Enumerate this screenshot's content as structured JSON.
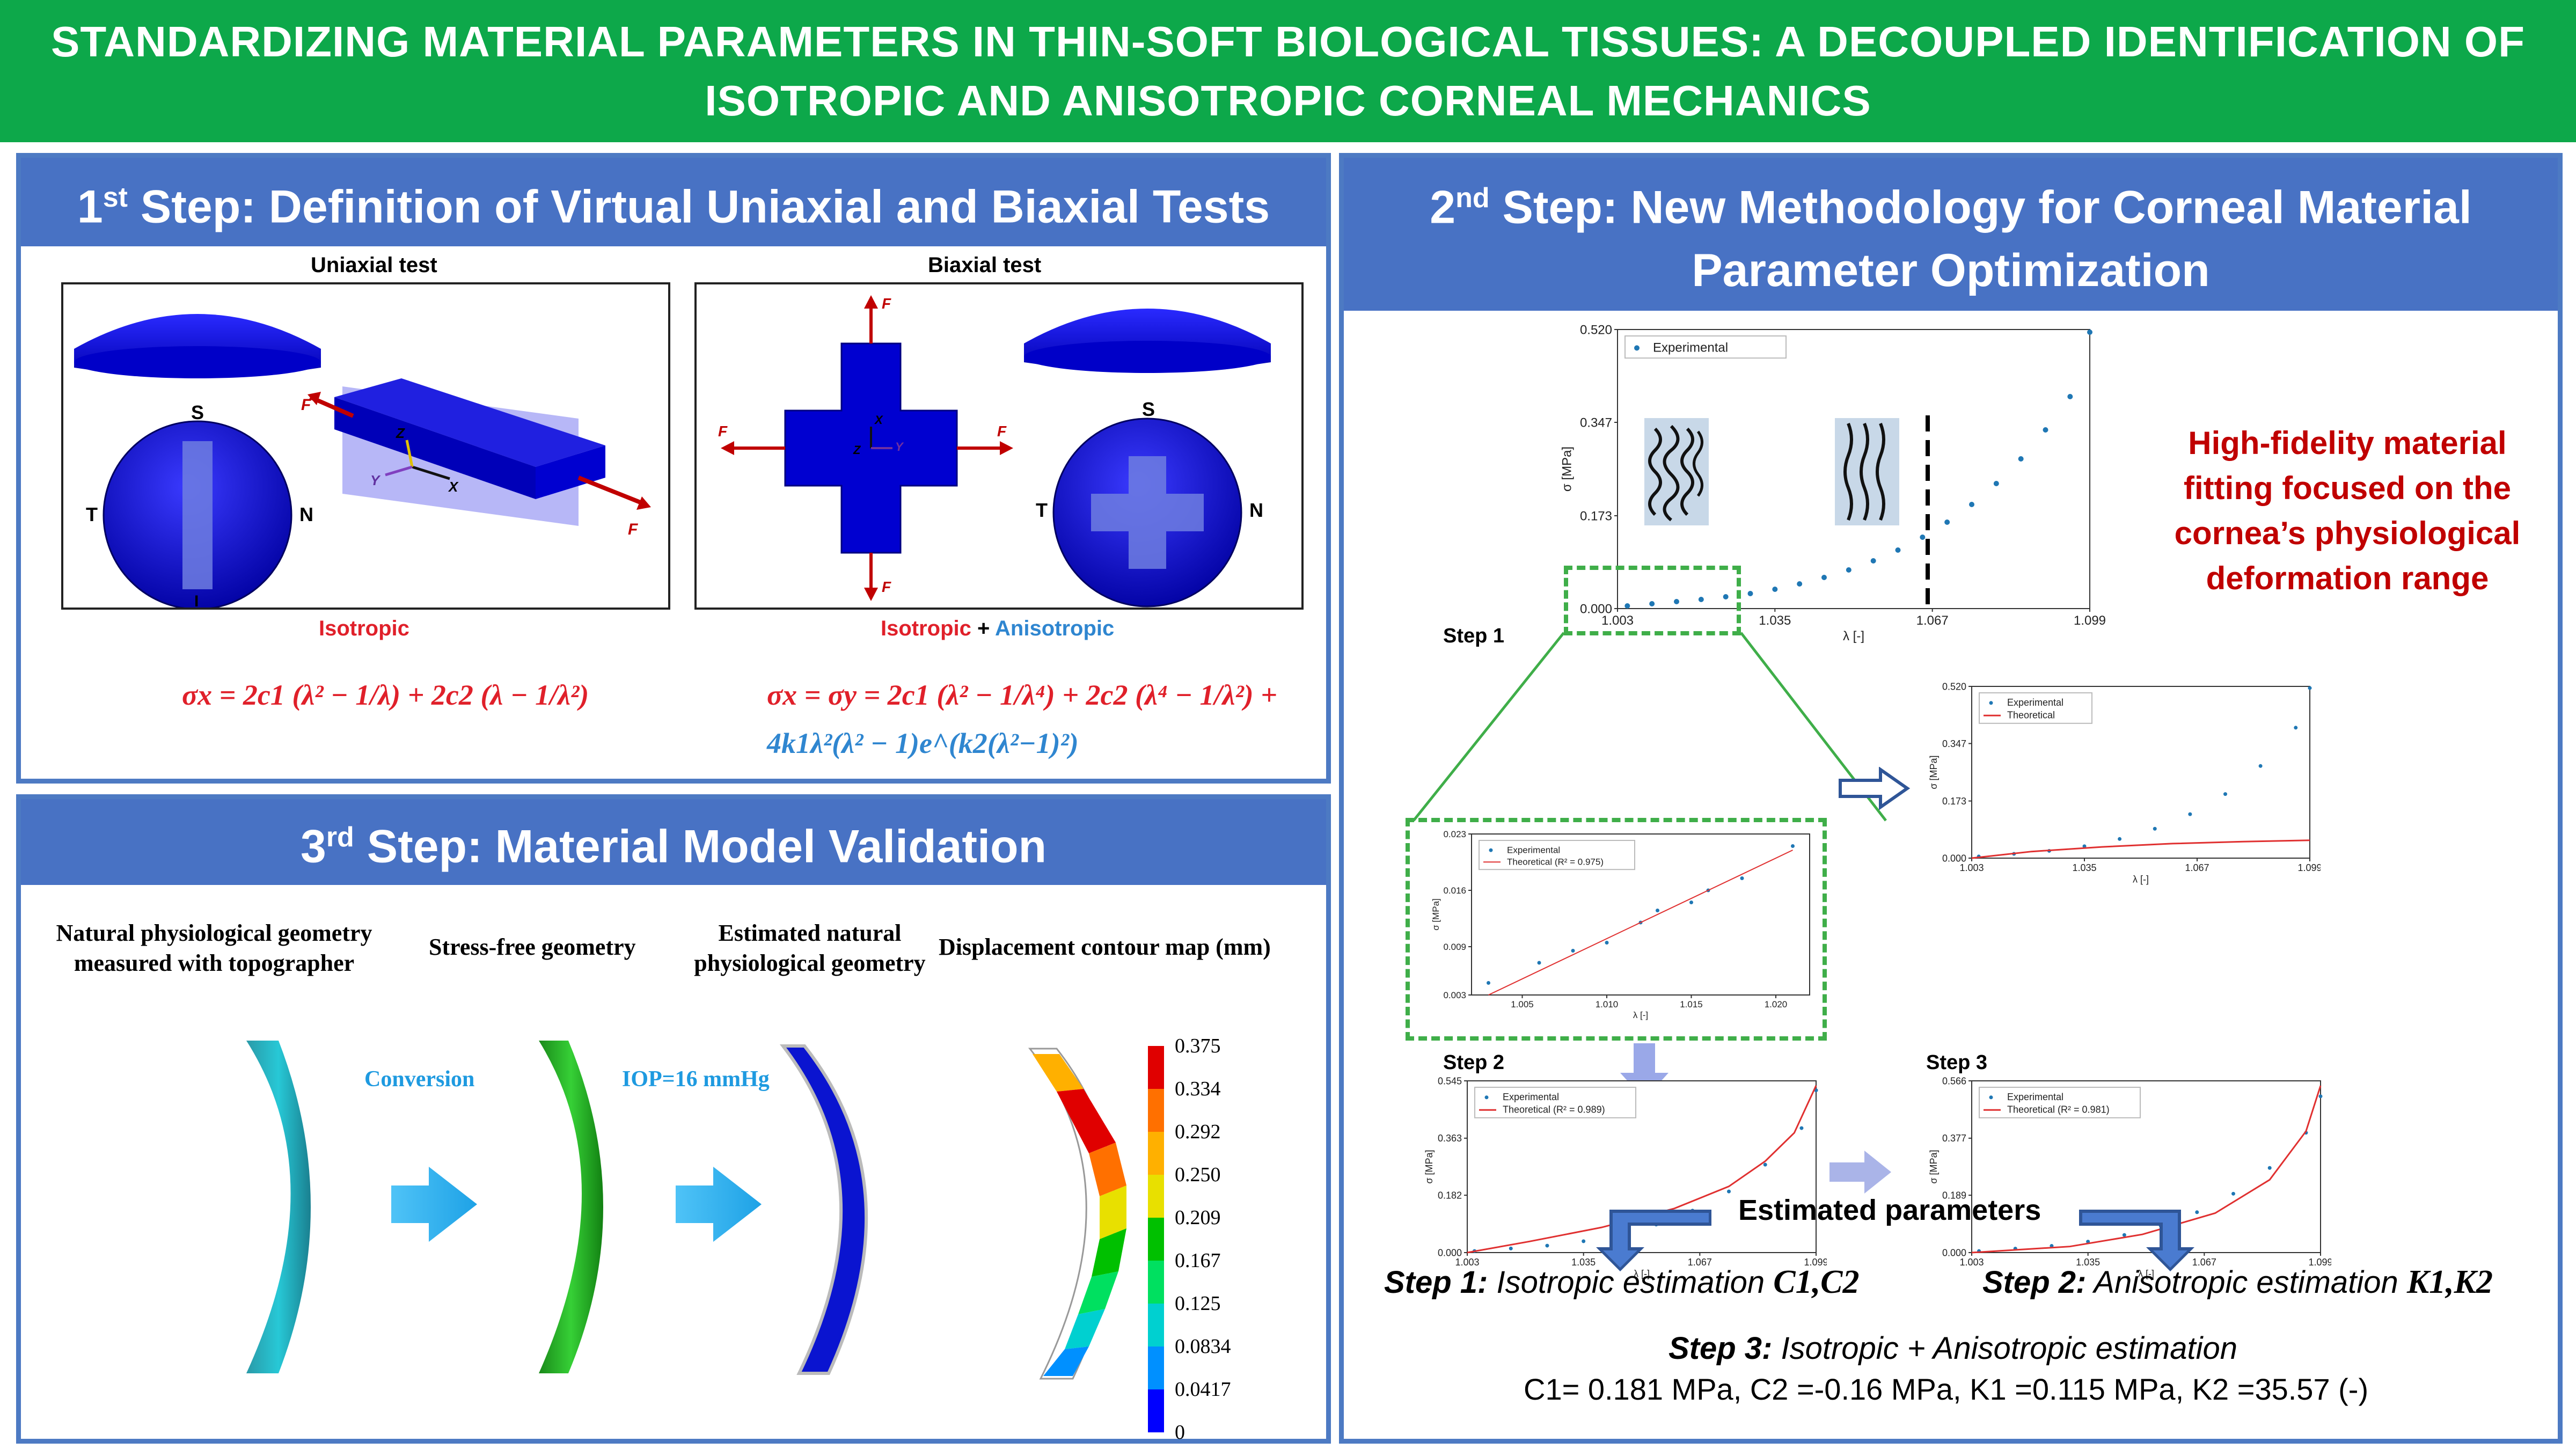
{
  "title": {
    "line1": "STANDARDIZING MATERIAL PARAMETERS IN THIN-SOFT BIOLOGICAL TISSUES: A DECOUPLED IDENTIFICATION OF",
    "line2": "ISOTROPIC AND ANISOTROPIC CORNEAL MECHANICS"
  },
  "step1": {
    "ordinal": "1",
    "ordinal_suffix": "st",
    "heading": " Step: Definition of Virtual Uniaxial and Biaxial Tests",
    "uniaxial_label": "Uniaxial test",
    "biaxial_label": "Biaxial test",
    "orient": {
      "s": "S",
      "t": "T",
      "n": "N",
      "i": "I"
    },
    "force_label": "F",
    "axes": {
      "x": "X",
      "y": "Y",
      "z": "Z"
    },
    "isotropic_label": "Isotropic",
    "plus": " + ",
    "anisotropic_label": "Anisotropic",
    "eq_uniaxial": "σx = 2c1 (λ² − 1/λ) + 2c2 (λ − 1/λ²)",
    "eq_biaxial_a": "σx = σy = 2c1 (λ² − 1/λ⁴) + 2c2 (λ⁴ − 1/λ²) +",
    "eq_biaxial_b": "4k1λ²(λ² − 1)e^(k2(λ²−1)²)"
  },
  "step2": {
    "ordinal": "2",
    "ordinal_suffix": "nd",
    "heading_line1": " Step: New Methodology for Corneal Material",
    "heading_line2": "Parameter Optimization",
    "callout": [
      "High-fidelity material",
      "fitting focused on the",
      "cornea’s physiological",
      "deformation range"
    ],
    "step1_label": "Step 1",
    "step2_label": "Step 2",
    "step3_label": "Step 3",
    "estimated_parameters": "Estimated parameters",
    "est_step1_bold": "Step 1:",
    "est_step1_text": " Isotropic estimation ",
    "est_step1_params": "C1,C2",
    "est_step2_bold": "Step 2:",
    "est_step2_text": " Anisotropic estimation ",
    "est_step2_params": "K1,K2",
    "est_step3_bold": "Step 3:",
    "est_step3_text": " Isotropic + Anisotropic estimation",
    "results": {
      "c1": "C1= 0.181 MPa, ",
      "c2": "C2 =-0.16 MPa, ",
      "k1": "K1 =0.115 MPa, ",
      "k2": "K2 =35.57 (-)"
    }
  },
  "step3": {
    "ordinal": "3",
    "ordinal_suffix": "rd",
    "heading": " Step: Material Model Validation",
    "col1": [
      "Natural physiological geometry",
      "measured with topographer"
    ],
    "col2": "Stress-free geometry",
    "col3": [
      "Estimated natural",
      "physiological geometry"
    ],
    "col4": "Displacement contour map (mm)",
    "arrow1": "Conversion",
    "arrow2": "IOP=16 mmHg",
    "legend_values": [
      "0.375",
      "0.334",
      "0.292",
      "0.250",
      "0.209",
      "0.167",
      "0.125",
      "0.0834",
      "0.0417",
      "0"
    ],
    "legend_colors": [
      "#e00000",
      "#ff7000",
      "#ffb000",
      "#e8e000",
      "#00c000",
      "#00e060",
      "#00d0d0",
      "#0090ff",
      "#0000ff"
    ]
  },
  "chart_data": [
    {
      "name": "main",
      "type": "scatter",
      "legend": [
        "Experimental"
      ],
      "xlabel": "λ [-]",
      "ylabel": "σ [MPa]",
      "xticks": [
        "1.003",
        "1.035",
        "1.067",
        "1.099"
      ],
      "yticks": [
        "0.000",
        "0.173",
        "0.347",
        "0.520"
      ],
      "xlim": [
        1.003,
        1.099
      ],
      "ylim": [
        0,
        0.52
      ],
      "series": [
        {
          "name": "Experimental",
          "x": [
            1.005,
            1.01,
            1.015,
            1.02,
            1.025,
            1.03,
            1.035,
            1.04,
            1.045,
            1.05,
            1.055,
            1.06,
            1.065,
            1.07,
            1.075,
            1.08,
            1.085,
            1.09,
            1.095,
            1.099
          ],
          "y": [
            0.005,
            0.009,
            0.013,
            0.017,
            0.022,
            0.028,
            0.036,
            0.046,
            0.058,
            0.072,
            0.089,
            0.109,
            0.133,
            0.161,
            0.194,
            0.233,
            0.279,
            0.333,
            0.395,
            0.515
          ]
        }
      ]
    },
    {
      "name": "zoom",
      "type": "scatter",
      "legend": [
        "Experimental",
        "Theoretical (R² = 0.975)"
      ],
      "xlabel": "λ [-]",
      "ylabel": "σ [MPa]",
      "xticks": [
        "1.005",
        "1.010",
        "1.015",
        "1.020"
      ],
      "yticks": [
        "0.003",
        "0.009",
        "0.016",
        "0.023"
      ],
      "xlim": [
        1.002,
        1.022
      ],
      "ylim": [
        0.003,
        0.023
      ],
      "series": [
        {
          "name": "Experimental",
          "x": [
            1.003,
            1.006,
            1.008,
            1.01,
            1.012,
            1.013,
            1.015,
            1.016,
            1.018,
            1.021
          ],
          "y": [
            0.0045,
            0.007,
            0.0085,
            0.0095,
            0.012,
            0.0135,
            0.0145,
            0.016,
            0.0175,
            0.0215
          ]
        },
        {
          "name": "Theoretical (R² = 0.975)",
          "x": [
            1.003,
            1.021
          ],
          "y": [
            0.003,
            0.021
          ]
        }
      ]
    },
    {
      "name": "extrapolation",
      "type": "line",
      "legend": [
        "Experimental",
        "Theoretical"
      ],
      "xlabel": "λ [-]",
      "ylabel": "σ [MPa]",
      "xticks": [
        "1.003",
        "1.035",
        "1.067",
        "1.099"
      ],
      "yticks": [
        "0.000",
        "0.173",
        "0.347",
        "0.520"
      ],
      "xlim": [
        1.003,
        1.099
      ],
      "ylim": [
        0,
        0.52
      ],
      "series": [
        {
          "name": "Experimental",
          "x": [
            1.005,
            1.015,
            1.025,
            1.035,
            1.045,
            1.055,
            1.065,
            1.075,
            1.085,
            1.095,
            1.099
          ],
          "y": [
            0.005,
            0.013,
            0.022,
            0.036,
            0.058,
            0.089,
            0.133,
            0.194,
            0.279,
            0.395,
            0.515
          ]
        },
        {
          "name": "Theoretical",
          "x": [
            1.003,
            1.02,
            1.04,
            1.06,
            1.08,
            1.099
          ],
          "y": [
            0.0,
            0.02,
            0.034,
            0.044,
            0.05,
            0.054
          ]
        }
      ]
    },
    {
      "name": "step2",
      "type": "line",
      "legend": [
        "Experimental",
        "Theoretical (R² = 0.989)"
      ],
      "xlabel": "λ [-]",
      "ylabel": "σ [MPa]",
      "xticks": [
        "1.003",
        "1.035",
        "1.067",
        "1.099"
      ],
      "yticks": [
        "0.000",
        "0.182",
        "0.363",
        "0.545"
      ],
      "xlim": [
        1.003,
        1.099
      ],
      "ylim": [
        0,
        0.545
      ],
      "series": [
        {
          "name": "Experimental",
          "x": [
            1.005,
            1.015,
            1.025,
            1.035,
            1.045,
            1.055,
            1.065,
            1.075,
            1.085,
            1.095,
            1.099
          ],
          "y": [
            0.005,
            0.013,
            0.022,
            0.036,
            0.058,
            0.089,
            0.133,
            0.194,
            0.279,
            0.395,
            0.515
          ]
        },
        {
          "name": "Theoretical (R² = 0.989)",
          "x": [
            1.003,
            1.02,
            1.04,
            1.06,
            1.075,
            1.085,
            1.093,
            1.099
          ],
          "y": [
            0.0,
            0.035,
            0.08,
            0.14,
            0.21,
            0.29,
            0.38,
            0.53
          ]
        }
      ]
    },
    {
      "name": "step3",
      "type": "line",
      "legend": [
        "Experimental",
        "Theoretical (R² = 0.981)"
      ],
      "xlabel": "λ [-]",
      "ylabel": "σ [MPa]",
      "xticks": [
        "1.003",
        "1.035",
        "1.067",
        "1.099"
      ],
      "yticks": [
        "0.000",
        "0.189",
        "0.377",
        "0.566"
      ],
      "xlim": [
        1.003,
        1.099
      ],
      "ylim": [
        0,
        0.566
      ],
      "series": [
        {
          "name": "Experimental",
          "x": [
            1.005,
            1.015,
            1.025,
            1.035,
            1.045,
            1.055,
            1.065,
            1.075,
            1.085,
            1.095,
            1.099
          ],
          "y": [
            0.005,
            0.013,
            0.022,
            0.036,
            0.058,
            0.089,
            0.133,
            0.194,
            0.279,
            0.395,
            0.515
          ]
        },
        {
          "name": "Theoretical (R² = 0.981)",
          "x": [
            1.003,
            1.03,
            1.05,
            1.07,
            1.085,
            1.095,
            1.099
          ],
          "y": [
            0.0,
            0.02,
            0.06,
            0.13,
            0.24,
            0.4,
            0.55
          ]
        }
      ]
    }
  ]
}
